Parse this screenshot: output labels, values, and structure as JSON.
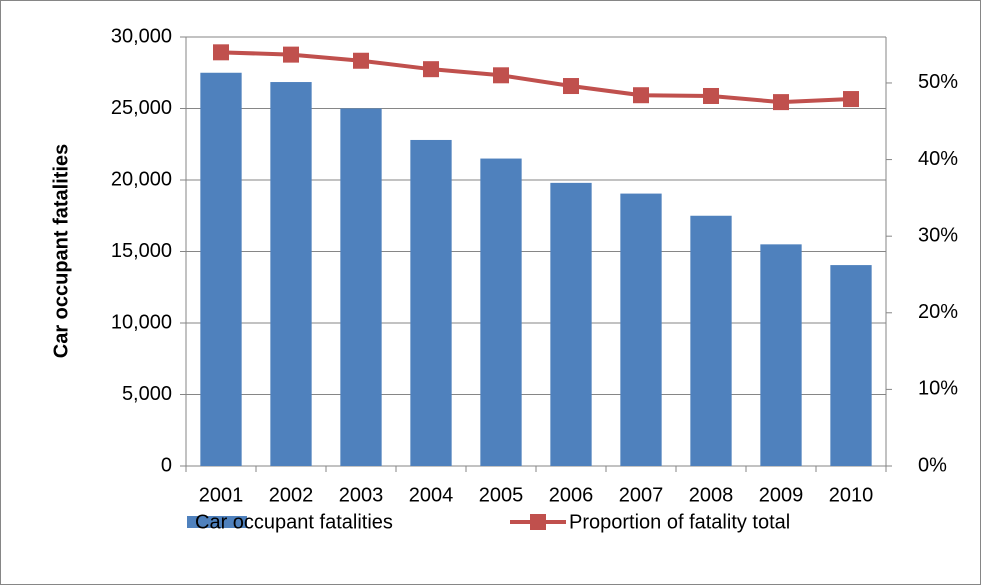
{
  "chart_data": {
    "type": "bar_line",
    "y_label": "Car occupant fatalities",
    "categories": [
      "2001",
      "2002",
      "2003",
      "2004",
      "2005",
      "2006",
      "2007",
      "2008",
      "2009",
      "2010"
    ],
    "series": [
      {
        "name": "Car occupant fatalities",
        "type": "bar",
        "color": "#4f81bd",
        "values": [
          27500,
          26850,
          25000,
          22800,
          21500,
          19800,
          19050,
          17500,
          15500,
          14050
        ]
      },
      {
        "name": "Proportion of fatality total",
        "type": "line",
        "axis": "y2",
        "color": "#c0504d",
        "values": [
          54.0,
          53.7,
          52.9,
          51.8,
          51.0,
          49.6,
          48.4,
          48.3,
          47.5,
          47.9
        ]
      }
    ],
    "ylim": [
      0,
      30000
    ],
    "yticks": [
      0,
      {
        "value": 5000,
        "label": "5,000"
      },
      {
        "value": 10000,
        "label": "10,000"
      },
      {
        "value": 15000,
        "label": "15,000"
      },
      {
        "value": 20000,
        "label": "20,000"
      },
      {
        "value": 25000,
        "label": "25,000"
      },
      {
        "value": 30000,
        "label": "30,000"
      }
    ],
    "y2lim": [
      0,
      56
    ],
    "y2ticks": [
      {
        "value": 0,
        "label": "0%"
      },
      {
        "value": 10,
        "label": "10%"
      },
      {
        "value": 20,
        "label": "20%"
      },
      {
        "value": 30,
        "label": "30%"
      },
      {
        "value": 40,
        "label": "40%"
      },
      {
        "value": 50,
        "label": "50%"
      }
    ],
    "grid": true,
    "legend": "bottom"
  }
}
